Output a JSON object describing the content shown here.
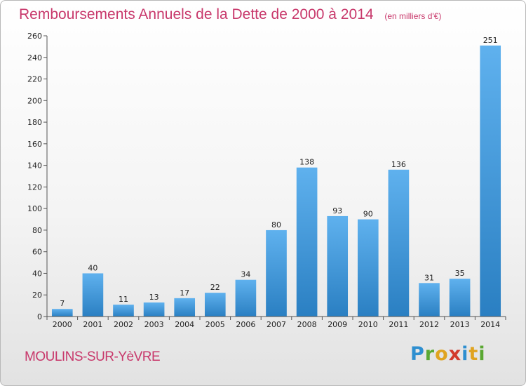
{
  "chart_data": {
    "type": "bar",
    "title": "Remboursements Annuels de la Dette de 2000 à 2014",
    "unit": "(en milliers d'€)",
    "categories": [
      "2000",
      "2001",
      "2002",
      "2003",
      "2004",
      "2005",
      "2006",
      "2007",
      "2008",
      "2009",
      "2010",
      "2011",
      "2012",
      "2013",
      "2014"
    ],
    "values": [
      7,
      40,
      11,
      13,
      17,
      22,
      34,
      80,
      138,
      93,
      90,
      136,
      31,
      35,
      251
    ],
    "ylim": [
      0,
      260
    ],
    "yticks": [
      0,
      20,
      40,
      60,
      80,
      100,
      120,
      140,
      160,
      180,
      200,
      220,
      240,
      260
    ],
    "grid": false,
    "bar_color": "#3d9ae0"
  },
  "footer": {
    "city": "MOULINS-SUR-YèVRE",
    "logo": "Proxiti"
  }
}
